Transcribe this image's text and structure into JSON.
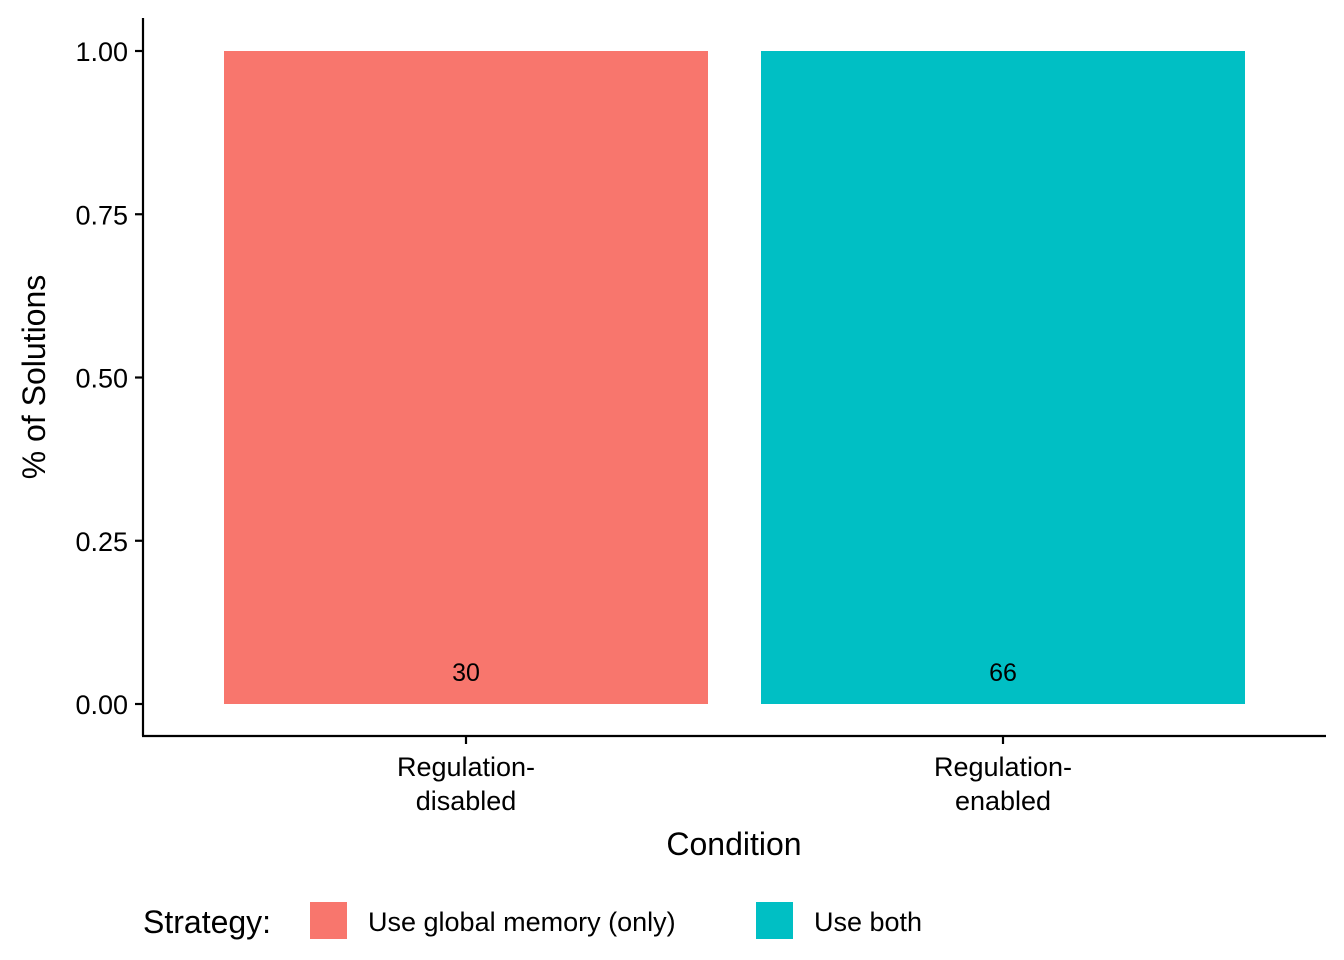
{
  "chart_data": {
    "type": "bar",
    "categories": [
      [
        "Regulation-",
        "disabled"
      ],
      [
        "Regulation-",
        "enabled"
      ]
    ],
    "values": [
      1.0,
      1.0
    ],
    "data_labels": [
      "30",
      "66"
    ],
    "bar_strategy": [
      "Use global memory (only)",
      "Use both"
    ],
    "xlabel": "Condition",
    "ylabel": "% of Solutions",
    "ylim": [
      0,
      1
    ],
    "y_ticks": [
      0,
      0.25,
      0.5,
      0.75,
      1.0
    ],
    "y_tick_labels": [
      "0.00",
      "0.25",
      "0.50",
      "0.75",
      "1.00"
    ],
    "grid": false,
    "legend": {
      "position": "bottom",
      "title": "Strategy:",
      "entries": [
        {
          "label": "Use global memory (only)",
          "color": "#F8766D"
        },
        {
          "label": "Use both",
          "color": "#00BFC4"
        }
      ]
    }
  }
}
